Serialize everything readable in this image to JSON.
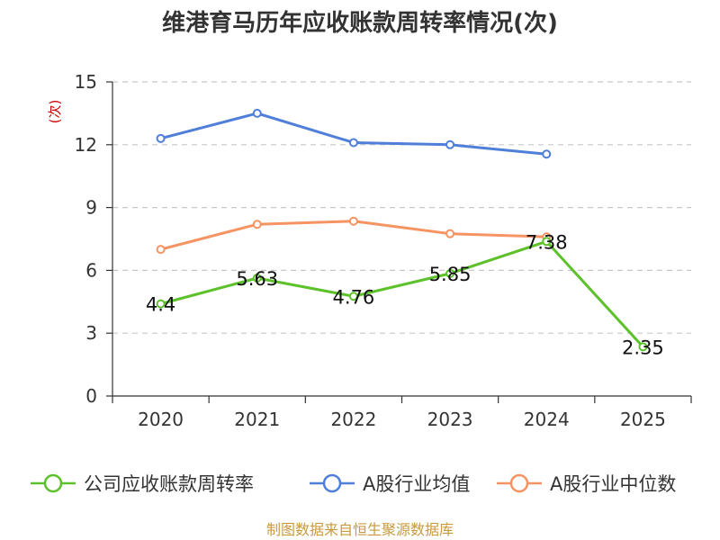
{
  "chart_data": {
    "type": "line",
    "title": "维港育马历年应收账款周转率情况(次)",
    "ylabel": "(次)",
    "xlabel": "",
    "categories": [
      "2020",
      "2021",
      "2022",
      "2023",
      "2024",
      "2025"
    ],
    "ylim": [
      0,
      15
    ],
    "yticks": [
      0,
      3,
      6,
      9,
      12,
      15
    ],
    "grid": true,
    "legend_position": "bottom",
    "series": [
      {
        "name": "公司应收账款周转率",
        "color": "#5cc12a",
        "values": [
          4.4,
          5.63,
          4.76,
          5.85,
          7.38,
          2.35
        ],
        "labels": [
          "4.4",
          "5.63",
          "4.76",
          "5.85",
          "7.38",
          "2.35"
        ]
      },
      {
        "name": "A股行业均值",
        "color": "#4f7fd9",
        "values": [
          12.3,
          13.5,
          12.1,
          12.0,
          11.55,
          null
        ]
      },
      {
        "name": "A股行业中位数",
        "color": "#f59462",
        "values": [
          7.0,
          8.2,
          8.35,
          7.75,
          7.6,
          null
        ]
      }
    ]
  },
  "footer": {
    "source": "制图数据来自恒生聚源数据库",
    "source_color": "#c89a3c",
    "unit_color": "#cc0000"
  }
}
